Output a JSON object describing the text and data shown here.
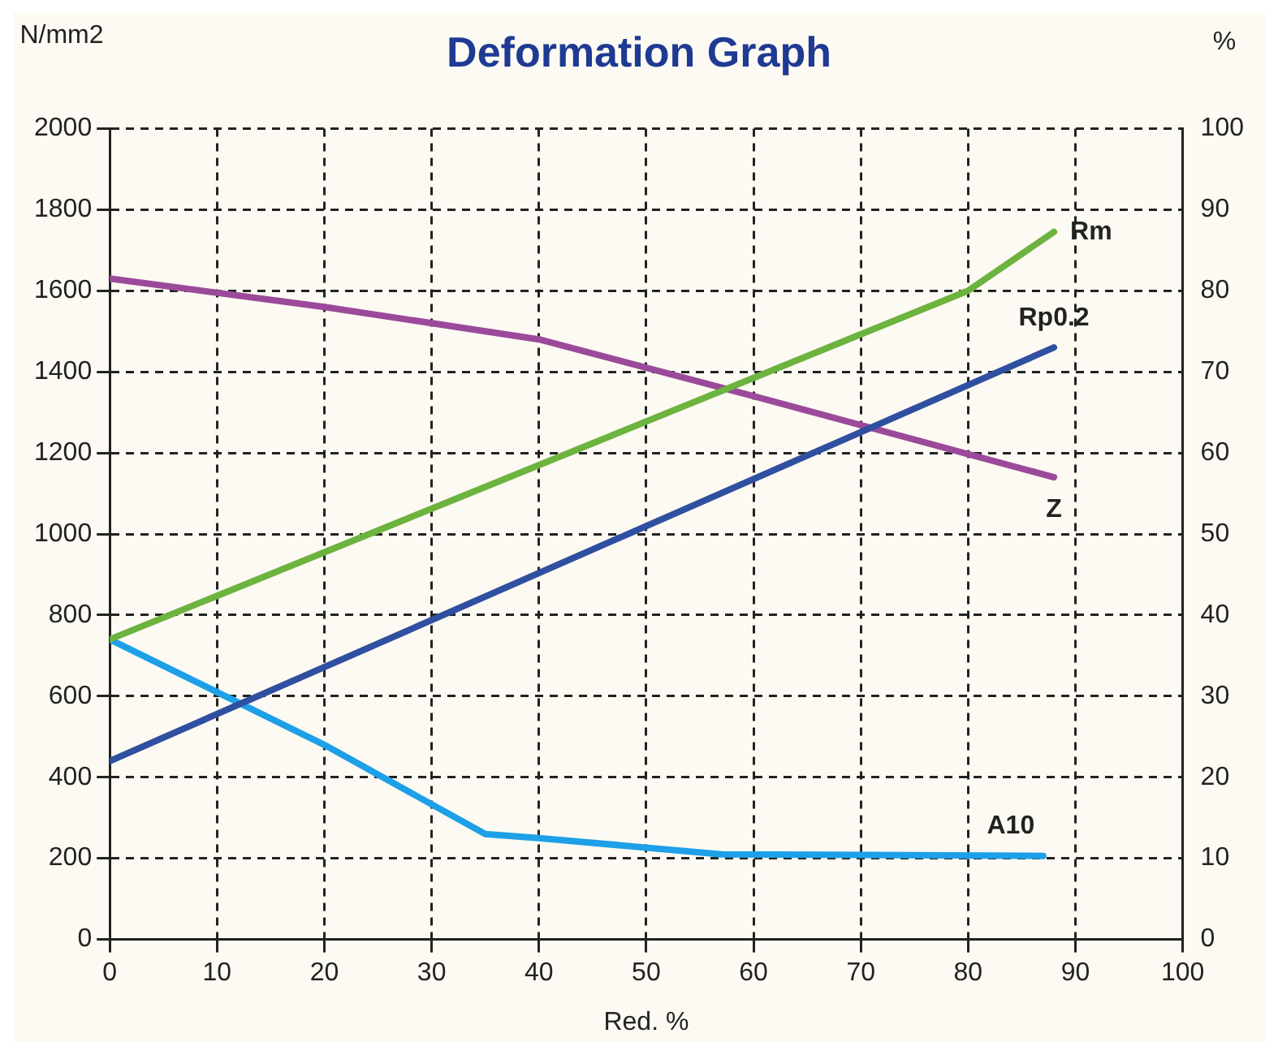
{
  "chart_data": {
    "type": "line",
    "title": "Deformation Graph",
    "xlabel": "Red. %",
    "ylabel": "N/mm2",
    "y2label": "%",
    "xlim": [
      0,
      100
    ],
    "xticks": [
      0,
      10,
      20,
      30,
      40,
      50,
      60,
      70,
      80,
      90,
      100
    ],
    "ylim": [
      0,
      2000
    ],
    "yticks": [
      0,
      200,
      400,
      600,
      800,
      1000,
      1200,
      1400,
      1600,
      1800,
      2000
    ],
    "y2lim": [
      0,
      100
    ],
    "y2ticks": [
      0,
      10,
      20,
      30,
      40,
      50,
      60,
      70,
      80,
      90,
      100
    ],
    "grid": true,
    "legend": false,
    "marker": "none",
    "line_style": "solid",
    "series": [
      {
        "name": "Rm",
        "color": "#6db33f",
        "x": [
          0,
          80,
          88
        ],
        "values": [
          740,
          1600,
          1745
        ]
      },
      {
        "name": "Rp0.2",
        "color": "#2f4fa0",
        "x": [
          0,
          88
        ],
        "values": [
          440,
          1460
        ]
      },
      {
        "name": "Z",
        "color": "#9b4a9a",
        "axis": "y2",
        "x": [
          0,
          20,
          40,
          60,
          88
        ],
        "values": [
          81.5,
          78,
          74,
          67,
          57
        ]
      },
      {
        "name": "A10",
        "color": "#1ea0e8",
        "axis": "y2",
        "x": [
          0,
          20,
          35,
          40,
          57,
          87
        ],
        "values": [
          37,
          24,
          13,
          12.5,
          10.5,
          10.3
        ]
      }
    ]
  }
}
